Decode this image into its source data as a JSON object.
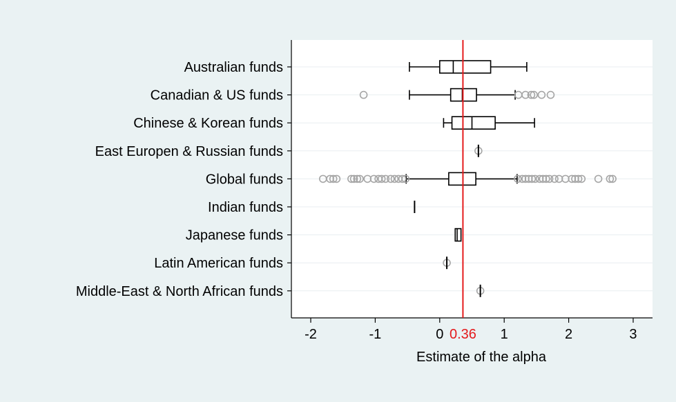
{
  "chart_data": {
    "type": "box",
    "orientation": "horizontal",
    "title": "",
    "xlabel": "Estimate of the alpha",
    "ylabel": "",
    "xlim": [
      -2.3,
      3.3
    ],
    "x_ticks": [
      -2,
      -1,
      0,
      1,
      2,
      3
    ],
    "grid": true,
    "legend": "none",
    "colors": {
      "background": "#eaf2f3",
      "plot_background": "#ffffff",
      "box": "#000000",
      "outlier": "#a6a6a6",
      "gridline": "#e8eef0",
      "reference": "#e41a1c"
    },
    "reference_line": {
      "value": 0.36,
      "label": "0.36"
    },
    "categories": [
      "Australian funds",
      "Canadian & US funds",
      "Chinese & Korean funds",
      "East Europen & Russian funds",
      "Global funds",
      "Indian funds",
      "Japanese funds",
      "Latin American funds",
      "Middle-East & North African funds"
    ],
    "boxes": [
      {
        "category": "Australian funds",
        "whisker_low": -0.47,
        "q1": 0.0,
        "median": 0.21,
        "q3": 0.79,
        "whisker_high": 1.35,
        "outliers": []
      },
      {
        "category": "Canadian & US funds",
        "whisker_low": -0.47,
        "q1": 0.17,
        "median": 0.35,
        "q3": 0.57,
        "whisker_high": 1.17,
        "outliers": [
          -1.18,
          1.22,
          1.33,
          1.42,
          1.46,
          1.58,
          1.72
        ]
      },
      {
        "category": "Chinese & Korean funds",
        "whisker_low": 0.06,
        "q1": 0.19,
        "median": 0.5,
        "q3": 0.86,
        "whisker_high": 1.47,
        "outliers": []
      },
      {
        "category": "East Europen & Russian funds",
        "whisker_low": 0.6,
        "q1": 0.6,
        "median": 0.6,
        "q3": 0.6,
        "whisker_high": 0.6,
        "outliers": [
          0.6
        ]
      },
      {
        "category": "Global funds",
        "whisker_low": -0.52,
        "q1": 0.14,
        "median": 0.36,
        "q3": 0.56,
        "whisker_high": 1.2,
        "outliers": [
          -1.81,
          -1.7,
          -1.65,
          -1.6,
          -1.37,
          -1.33,
          -1.28,
          -1.24,
          -1.12,
          -1.02,
          -0.95,
          -0.9,
          -0.84,
          -0.76,
          -0.7,
          -0.64,
          -0.58,
          -0.53,
          1.21,
          1.28,
          1.33,
          1.38,
          1.43,
          1.48,
          1.55,
          1.6,
          1.65,
          1.7,
          1.78,
          1.85,
          1.95,
          2.05,
          2.1,
          2.15,
          2.2,
          2.46,
          2.64,
          2.68
        ]
      },
      {
        "category": "Indian funds",
        "whisker_low": -0.39,
        "q1": -0.39,
        "median": -0.39,
        "q3": -0.39,
        "whisker_high": -0.39,
        "outliers": []
      },
      {
        "category": "Japanese funds",
        "whisker_low": 0.24,
        "q1": 0.24,
        "median": 0.27,
        "q3": 0.33,
        "whisker_high": 0.33,
        "outliers": []
      },
      {
        "category": "Latin American funds",
        "whisker_low": 0.11,
        "q1": 0.11,
        "median": 0.11,
        "q3": 0.11,
        "whisker_high": 0.11,
        "outliers": [
          0.11
        ]
      },
      {
        "category": "Middle-East & North African funds",
        "whisker_low": 0.63,
        "q1": 0.63,
        "median": 0.63,
        "q3": 0.63,
        "whisker_high": 0.63,
        "outliers": [
          0.63
        ]
      }
    ]
  }
}
